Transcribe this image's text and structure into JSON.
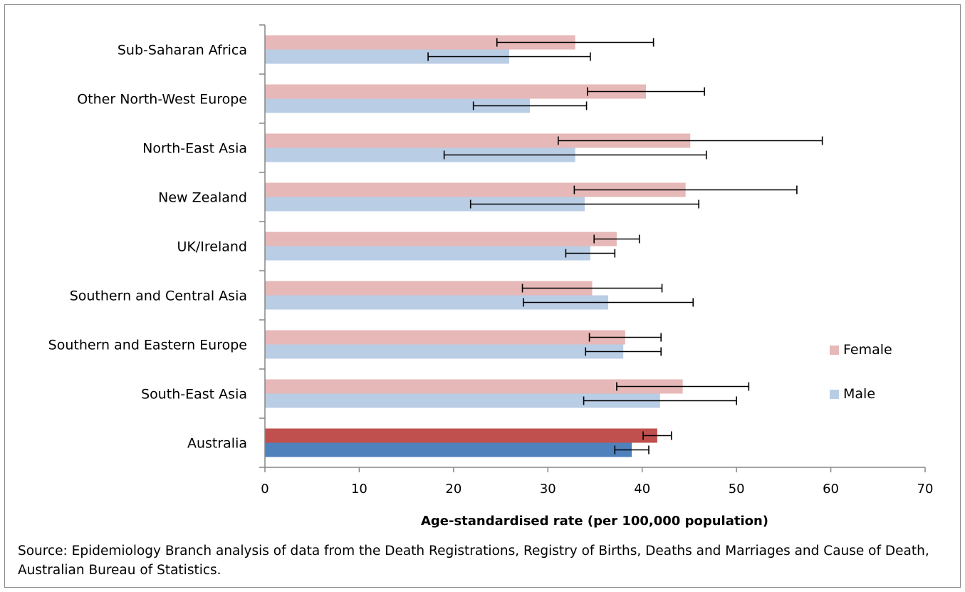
{
  "source_note": "Source: Epidemiology Branch analysis of data from the Death Registrations, Registry of Births, Deaths and Marriages and Cause of Death, Australian Bureau of Statistics.",
  "chart_data": {
    "type": "bar",
    "orientation": "horizontal",
    "title": "",
    "xlabel": "Age-standardised rate (per 100,000 population)",
    "ylabel": "",
    "xlim": [
      0,
      70
    ],
    "x_ticks": [
      0,
      10,
      20,
      30,
      40,
      50,
      60,
      70
    ],
    "grid": false,
    "legend_position": "right",
    "categories": [
      "Sub-Saharan Africa",
      "Other North-West Europe",
      "North-East Asia",
      "New Zealand",
      "UK/Ireland",
      "Southern and Central Asia",
      "Southern and Eastern Europe",
      "South-East Asia",
      "Australia"
    ],
    "highlight_category": "Australia",
    "series": [
      {
        "name": "Female",
        "color": "#e6b8b7",
        "highlight_color": "#c0504d",
        "values": [
          32.9,
          40.4,
          45.1,
          44.6,
          37.3,
          34.7,
          38.2,
          44.3,
          41.6
        ],
        "error_low": [
          24.6,
          34.2,
          31.1,
          32.8,
          34.9,
          27.3,
          34.4,
          37.3,
          40.1
        ],
        "error_high": [
          41.2,
          46.6,
          59.1,
          56.4,
          39.7,
          42.1,
          42.0,
          51.3,
          43.1
        ]
      },
      {
        "name": "Male",
        "color": "#b9cde5",
        "highlight_color": "#4f81bd",
        "values": [
          25.9,
          28.1,
          32.9,
          33.9,
          34.5,
          36.4,
          38.0,
          41.9,
          38.9
        ],
        "error_low": [
          17.3,
          22.1,
          19.0,
          21.8,
          31.9,
          27.4,
          34.0,
          33.8,
          37.1
        ],
        "error_high": [
          34.5,
          34.1,
          46.8,
          46.0,
          37.1,
          45.4,
          42.0,
          50.0,
          40.7
        ]
      }
    ]
  }
}
